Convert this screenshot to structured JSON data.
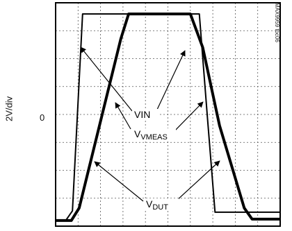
{
  "chart_data": {
    "type": "line",
    "ylabel": "2V/div",
    "zero_label": "0",
    "figure_id": "MAX9959 toc06",
    "grid": true,
    "x_divisions": 10,
    "y_divisions": 8,
    "xlim": [
      0,
      10
    ],
    "ylim": [
      -4,
      4
    ],
    "series": [
      {
        "name": "VIN",
        "x": [
          0,
          0.45,
          0.75,
          1.2,
          6.4,
          6.75,
          7.1,
          10
        ],
        "y": [
          -3.8,
          -3.8,
          -3.45,
          3.6,
          3.6,
          0,
          -3.5,
          -3.5
        ]
      },
      {
        "name": "VVMEAS",
        "x": [
          0,
          0.7,
          1.05,
          2.9,
          3.25,
          6.0,
          6.55,
          7.3,
          8.4,
          8.75,
          10
        ],
        "y": [
          -3.8,
          -3.8,
          -3.35,
          2.7,
          3.6,
          3.6,
          2.4,
          -0.4,
          -3.35,
          -3.75,
          -3.75
        ]
      },
      {
        "name": "VDUT",
        "x": [
          0,
          0.7,
          1.05,
          2.9,
          3.25,
          6.0,
          6.55,
          7.3,
          8.4,
          8.75,
          10
        ],
        "y": [
          -3.8,
          -3.8,
          -3.35,
          2.7,
          3.6,
          3.6,
          2.4,
          -0.4,
          -3.35,
          -3.75,
          -3.75
        ]
      }
    ],
    "annotations": {
      "vin": {
        "main": "VIN",
        "sub": ""
      },
      "vvmeas": {
        "main": "V",
        "sub": "VMEAS"
      },
      "vdut": {
        "main": "V",
        "sub": "DUT"
      }
    }
  }
}
